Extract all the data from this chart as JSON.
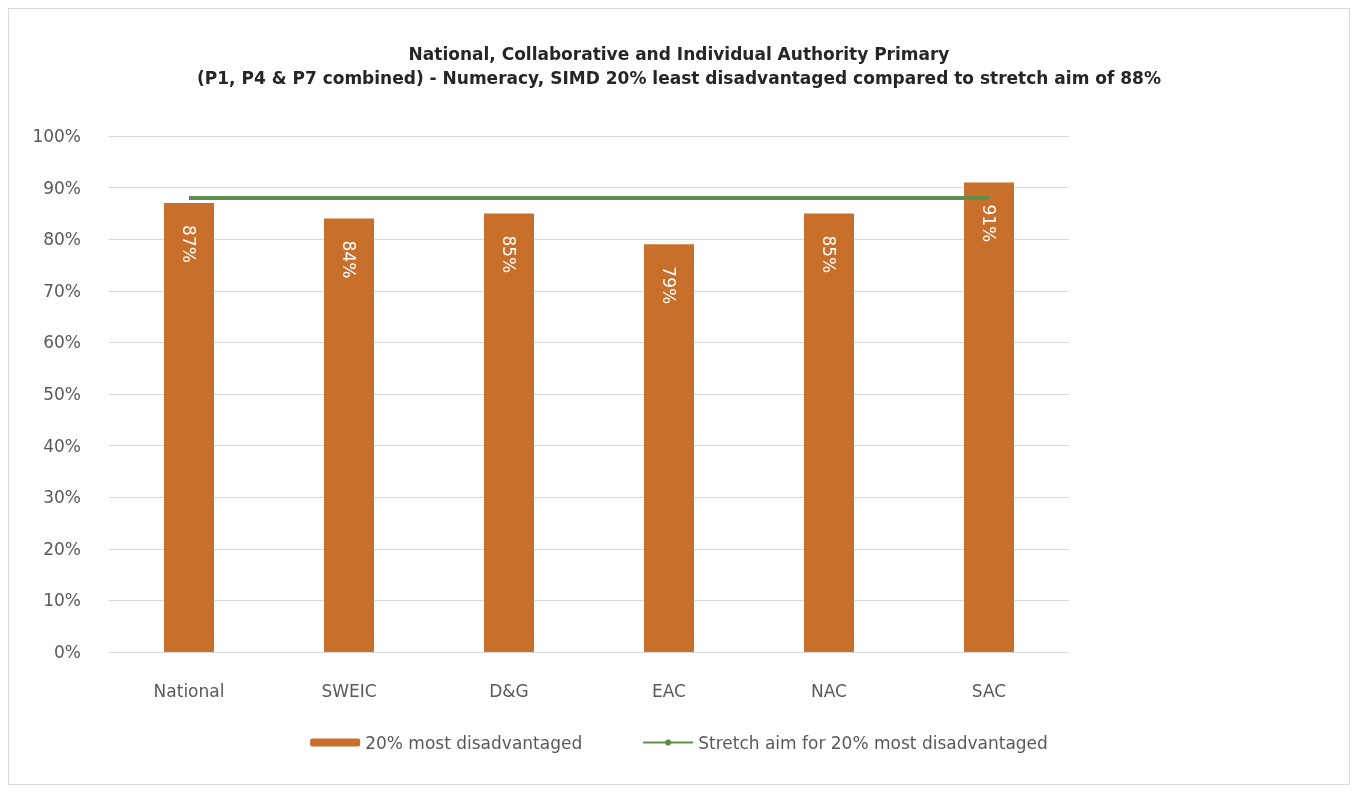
{
  "chart_data": {
    "type": "bar",
    "title": "National, Collaborative and Individual Authority Primary\n(P1, P4 & P7 combined) - Numeracy, SIMD 20% least disadvantaged compared to stretch aim of 88%",
    "categories": [
      "National",
      "SWEIC",
      "D&G",
      "EAC",
      "NAC",
      "SAC"
    ],
    "series": [
      {
        "name": "20% most disadvantaged",
        "color": "#c76f2b",
        "values": [
          87,
          84,
          85,
          79,
          85,
          91
        ],
        "value_labels": [
          "87%",
          "84%",
          "85%",
          "79%",
          "85%",
          "91%"
        ]
      },
      {
        "name": "Stretch aim for 20% most disadvantaged",
        "type": "line",
        "color": "#5e8f4a",
        "values": [
          88,
          88,
          88,
          88,
          88,
          88
        ]
      }
    ],
    "ylim": [
      0,
      100
    ],
    "yticks": [
      {
        "value": 0,
        "label": "0%"
      },
      {
        "value": 10,
        "label": "10%"
      },
      {
        "value": 20,
        "label": "20%"
      },
      {
        "value": 30,
        "label": "30%"
      },
      {
        "value": 40,
        "label": "40%"
      },
      {
        "value": 50,
        "label": "50%"
      },
      {
        "value": 60,
        "label": "60%"
      },
      {
        "value": 70,
        "label": "70%"
      },
      {
        "value": 80,
        "label": "80%"
      },
      {
        "value": 90,
        "label": "90%"
      },
      {
        "value": 100,
        "label": "100%"
      }
    ],
    "grid": "y",
    "legend": "bottom",
    "marker": "none"
  }
}
